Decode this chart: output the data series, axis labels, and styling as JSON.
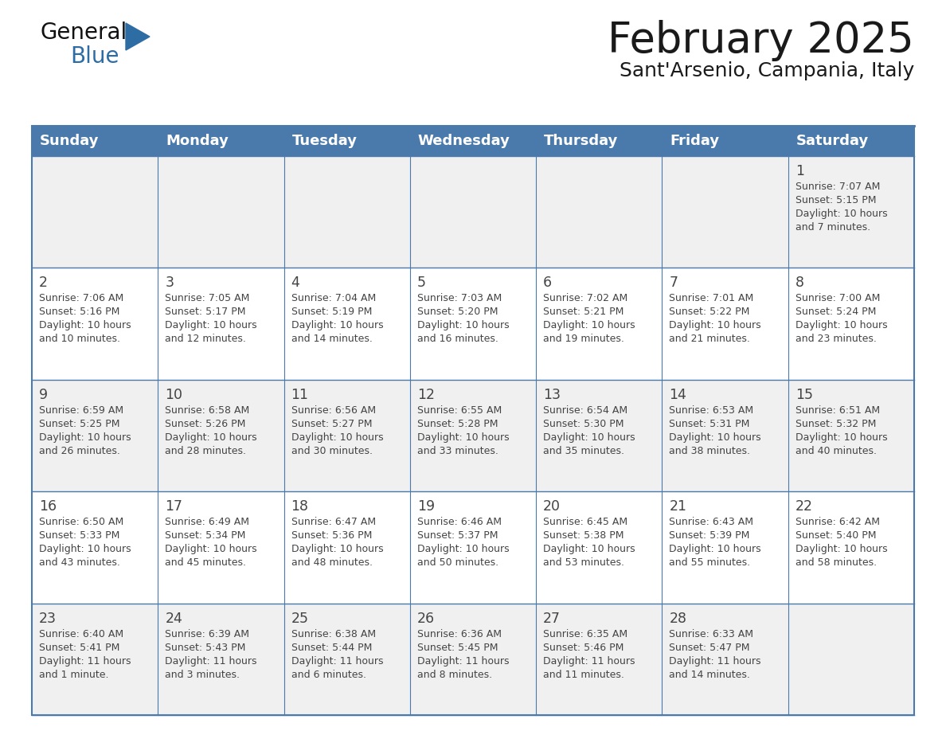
{
  "title": "February 2025",
  "subtitle": "Sant'Arsenio, Campania, Italy",
  "header_color": "#4a7aac",
  "header_text_color": "#ffffff",
  "day_names": [
    "Sunday",
    "Monday",
    "Tuesday",
    "Wednesday",
    "Thursday",
    "Friday",
    "Saturday"
  ],
  "background_color": "#ffffff",
  "cell_bg_row0": "#f0f0f0",
  "cell_bg_row1": "#ffffff",
  "cell_bg_row2": "#f0f0f0",
  "cell_bg_row3": "#ffffff",
  "cell_bg_row4": "#f0f0f0",
  "line_color": "#4a7aac",
  "title_color": "#1a1a1a",
  "subtitle_color": "#1a1a1a",
  "text_color": "#444444",
  "days": [
    {
      "day": 1,
      "col": 6,
      "row": 0,
      "sunrise": "7:07 AM",
      "sunset": "5:15 PM",
      "daylight_line1": "Daylight: 10 hours",
      "daylight_line2": "and 7 minutes."
    },
    {
      "day": 2,
      "col": 0,
      "row": 1,
      "sunrise": "7:06 AM",
      "sunset": "5:16 PM",
      "daylight_line1": "Daylight: 10 hours",
      "daylight_line2": "and 10 minutes."
    },
    {
      "day": 3,
      "col": 1,
      "row": 1,
      "sunrise": "7:05 AM",
      "sunset": "5:17 PM",
      "daylight_line1": "Daylight: 10 hours",
      "daylight_line2": "and 12 minutes."
    },
    {
      "day": 4,
      "col": 2,
      "row": 1,
      "sunrise": "7:04 AM",
      "sunset": "5:19 PM",
      "daylight_line1": "Daylight: 10 hours",
      "daylight_line2": "and 14 minutes."
    },
    {
      "day": 5,
      "col": 3,
      "row": 1,
      "sunrise": "7:03 AM",
      "sunset": "5:20 PM",
      "daylight_line1": "Daylight: 10 hours",
      "daylight_line2": "and 16 minutes."
    },
    {
      "day": 6,
      "col": 4,
      "row": 1,
      "sunrise": "7:02 AM",
      "sunset": "5:21 PM",
      "daylight_line1": "Daylight: 10 hours",
      "daylight_line2": "and 19 minutes."
    },
    {
      "day": 7,
      "col": 5,
      "row": 1,
      "sunrise": "7:01 AM",
      "sunset": "5:22 PM",
      "daylight_line1": "Daylight: 10 hours",
      "daylight_line2": "and 21 minutes."
    },
    {
      "day": 8,
      "col": 6,
      "row": 1,
      "sunrise": "7:00 AM",
      "sunset": "5:24 PM",
      "daylight_line1": "Daylight: 10 hours",
      "daylight_line2": "and 23 minutes."
    },
    {
      "day": 9,
      "col": 0,
      "row": 2,
      "sunrise": "6:59 AM",
      "sunset": "5:25 PM",
      "daylight_line1": "Daylight: 10 hours",
      "daylight_line2": "and 26 minutes."
    },
    {
      "day": 10,
      "col": 1,
      "row": 2,
      "sunrise": "6:58 AM",
      "sunset": "5:26 PM",
      "daylight_line1": "Daylight: 10 hours",
      "daylight_line2": "and 28 minutes."
    },
    {
      "day": 11,
      "col": 2,
      "row": 2,
      "sunrise": "6:56 AM",
      "sunset": "5:27 PM",
      "daylight_line1": "Daylight: 10 hours",
      "daylight_line2": "and 30 minutes."
    },
    {
      "day": 12,
      "col": 3,
      "row": 2,
      "sunrise": "6:55 AM",
      "sunset": "5:28 PM",
      "daylight_line1": "Daylight: 10 hours",
      "daylight_line2": "and 33 minutes."
    },
    {
      "day": 13,
      "col": 4,
      "row": 2,
      "sunrise": "6:54 AM",
      "sunset": "5:30 PM",
      "daylight_line1": "Daylight: 10 hours",
      "daylight_line2": "and 35 minutes."
    },
    {
      "day": 14,
      "col": 5,
      "row": 2,
      "sunrise": "6:53 AM",
      "sunset": "5:31 PM",
      "daylight_line1": "Daylight: 10 hours",
      "daylight_line2": "and 38 minutes."
    },
    {
      "day": 15,
      "col": 6,
      "row": 2,
      "sunrise": "6:51 AM",
      "sunset": "5:32 PM",
      "daylight_line1": "Daylight: 10 hours",
      "daylight_line2": "and 40 minutes."
    },
    {
      "day": 16,
      "col": 0,
      "row": 3,
      "sunrise": "6:50 AM",
      "sunset": "5:33 PM",
      "daylight_line1": "Daylight: 10 hours",
      "daylight_line2": "and 43 minutes."
    },
    {
      "day": 17,
      "col": 1,
      "row": 3,
      "sunrise": "6:49 AM",
      "sunset": "5:34 PM",
      "daylight_line1": "Daylight: 10 hours",
      "daylight_line2": "and 45 minutes."
    },
    {
      "day": 18,
      "col": 2,
      "row": 3,
      "sunrise": "6:47 AM",
      "sunset": "5:36 PM",
      "daylight_line1": "Daylight: 10 hours",
      "daylight_line2": "and 48 minutes."
    },
    {
      "day": 19,
      "col": 3,
      "row": 3,
      "sunrise": "6:46 AM",
      "sunset": "5:37 PM",
      "daylight_line1": "Daylight: 10 hours",
      "daylight_line2": "and 50 minutes."
    },
    {
      "day": 20,
      "col": 4,
      "row": 3,
      "sunrise": "6:45 AM",
      "sunset": "5:38 PM",
      "daylight_line1": "Daylight: 10 hours",
      "daylight_line2": "and 53 minutes."
    },
    {
      "day": 21,
      "col": 5,
      "row": 3,
      "sunrise": "6:43 AM",
      "sunset": "5:39 PM",
      "daylight_line1": "Daylight: 10 hours",
      "daylight_line2": "and 55 minutes."
    },
    {
      "day": 22,
      "col": 6,
      "row": 3,
      "sunrise": "6:42 AM",
      "sunset": "5:40 PM",
      "daylight_line1": "Daylight: 10 hours",
      "daylight_line2": "and 58 minutes."
    },
    {
      "day": 23,
      "col": 0,
      "row": 4,
      "sunrise": "6:40 AM",
      "sunset": "5:41 PM",
      "daylight_line1": "Daylight: 11 hours",
      "daylight_line2": "and 1 minute."
    },
    {
      "day": 24,
      "col": 1,
      "row": 4,
      "sunrise": "6:39 AM",
      "sunset": "5:43 PM",
      "daylight_line1": "Daylight: 11 hours",
      "daylight_line2": "and 3 minutes."
    },
    {
      "day": 25,
      "col": 2,
      "row": 4,
      "sunrise": "6:38 AM",
      "sunset": "5:44 PM",
      "daylight_line1": "Daylight: 11 hours",
      "daylight_line2": "and 6 minutes."
    },
    {
      "day": 26,
      "col": 3,
      "row": 4,
      "sunrise": "6:36 AM",
      "sunset": "5:45 PM",
      "daylight_line1": "Daylight: 11 hours",
      "daylight_line2": "and 8 minutes."
    },
    {
      "day": 27,
      "col": 4,
      "row": 4,
      "sunrise": "6:35 AM",
      "sunset": "5:46 PM",
      "daylight_line1": "Daylight: 11 hours",
      "daylight_line2": "and 11 minutes."
    },
    {
      "day": 28,
      "col": 5,
      "row": 4,
      "sunrise": "6:33 AM",
      "sunset": "5:47 PM",
      "daylight_line1": "Daylight: 11 hours",
      "daylight_line2": "and 14 minutes."
    }
  ],
  "num_rows": 5,
  "logo_text_general": "General",
  "logo_text_blue": "Blue",
  "logo_triangle_color": "#2e6da4"
}
